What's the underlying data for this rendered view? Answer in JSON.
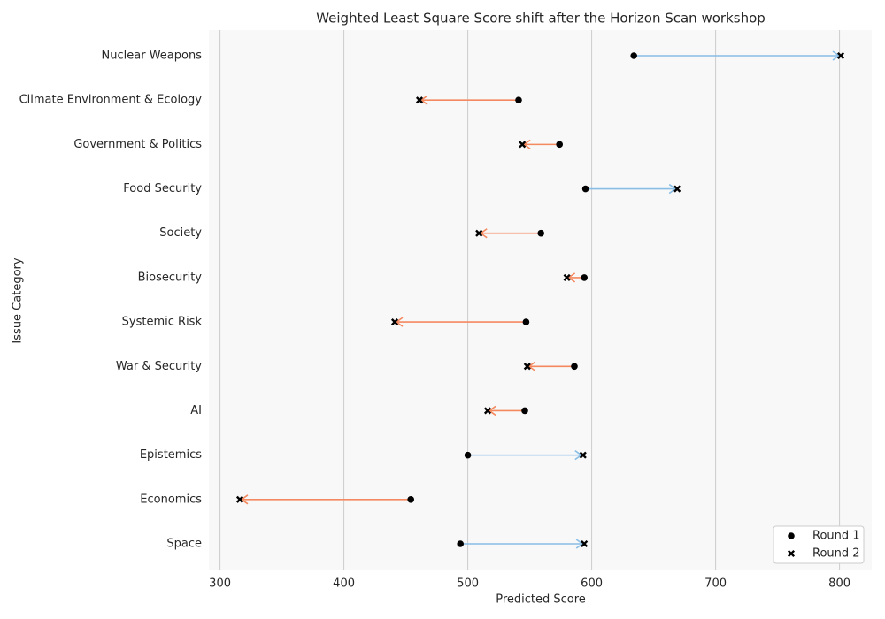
{
  "chart_data": {
    "type": "arrow",
    "title": "Weighted Least Square Score shift after the Horizon Scan workshop",
    "xlabel": "Predicted Score",
    "ylabel": "Issue Category",
    "categories": [
      "Nuclear Weapons",
      "Climate Environment & Ecology",
      "Government & Politics",
      "Food Security",
      "Society",
      "Biosecurity",
      "Systemic Risk",
      "War & Security",
      "AI",
      "Epistemics",
      "Economics",
      "Space"
    ],
    "series": [
      {
        "name": "Round 1",
        "marker": "circle",
        "color": "#000000",
        "values": [
          634,
          541,
          574,
          595,
          559,
          594,
          547,
          586,
          546,
          500,
          454,
          494
        ]
      },
      {
        "name": "Round 2",
        "marker": "x",
        "color": "#000000",
        "values": [
          801,
          461,
          544,
          669,
          509,
          580,
          441,
          548,
          516,
          593,
          316,
          594
        ]
      }
    ],
    "increase_color": "#88bde6",
    "decrease_color": "#f4895f",
    "xlim": [
      291,
      826
    ],
    "xticks": [
      300,
      400,
      500,
      600,
      700,
      800
    ],
    "grid": true,
    "legend": "lower right"
  }
}
